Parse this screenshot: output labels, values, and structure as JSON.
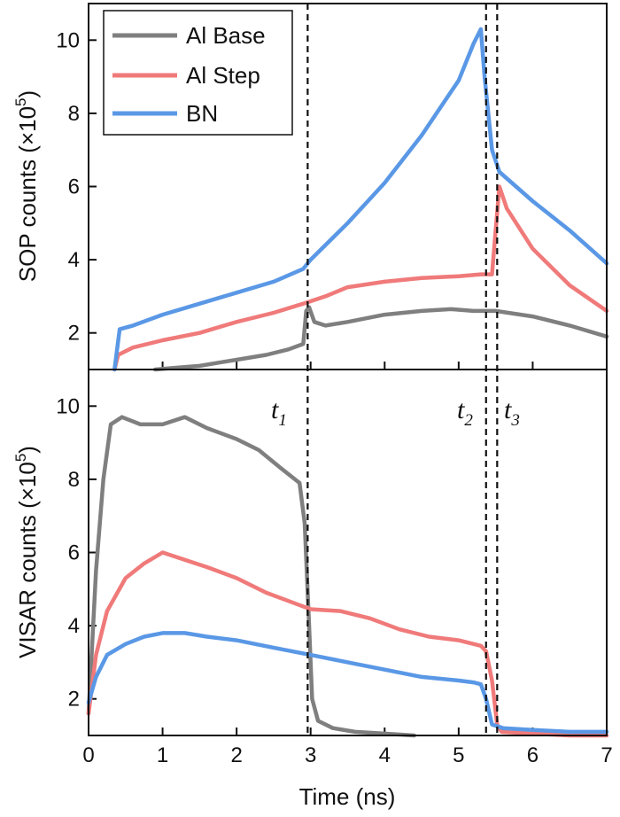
{
  "chart_data": {
    "type": "line",
    "colors": {
      "al_base": "#7f7f7f",
      "al_step": "#f07a7a",
      "bn": "#5a98e6"
    },
    "xlabel": "Time (ns)",
    "xlim": [
      0,
      7
    ],
    "xticks": [
      0,
      1,
      2,
      3,
      4,
      5,
      6,
      7
    ],
    "time_markers": [
      {
        "name": "t",
        "sub": "1",
        "x": 2.96
      },
      {
        "name": "t",
        "sub": "2",
        "x": 5.37
      },
      {
        "name": "t",
        "sub": "3",
        "x": 5.52
      }
    ],
    "legend": {
      "placement": "top-left",
      "entries": [
        {
          "label": "Al Base",
          "series": "al_base"
        },
        {
          "label": "Al Step",
          "series": "al_step"
        },
        {
          "label": "BN",
          "series": "bn"
        }
      ]
    },
    "panels": [
      {
        "id": "sop",
        "ylabel": "SOP counts (×10",
        "ylabel_exp": "5",
        "ylabel_close": ")",
        "ylim": [
          1,
          11
        ],
        "yticks": [
          2,
          4,
          6,
          8,
          10
        ],
        "series": [
          {
            "key": "al_base",
            "name": "Al Base",
            "x": [
              0.9,
              1.2,
              1.5,
              1.8,
              2.1,
              2.4,
              2.7,
              2.9,
              2.94,
              2.98,
              3.05,
              3.2,
              3.5,
              4.0,
              4.5,
              4.9,
              5.2,
              5.5,
              6.0,
              6.5,
              7.0
            ],
            "y": [
              1.0,
              1.05,
              1.1,
              1.2,
              1.3,
              1.4,
              1.55,
              1.7,
              2.6,
              2.7,
              2.3,
              2.2,
              2.3,
              2.5,
              2.6,
              2.65,
              2.6,
              2.6,
              2.45,
              2.2,
              1.9
            ]
          },
          {
            "key": "al_step",
            "name": "Al Step",
            "x": [
              0.35,
              0.4,
              0.6,
              1.0,
              1.5,
              2.0,
              2.5,
              2.9,
              3.2,
              3.5,
              4.0,
              4.5,
              5.0,
              5.3,
              5.45,
              5.5,
              5.55,
              5.65,
              6.0,
              6.5,
              7.0
            ],
            "y": [
              1.0,
              1.4,
              1.6,
              1.8,
              2.0,
              2.3,
              2.55,
              2.8,
              3.0,
              3.25,
              3.4,
              3.5,
              3.55,
              3.6,
              3.6,
              4.8,
              6.0,
              5.4,
              4.3,
              3.3,
              2.6
            ]
          },
          {
            "key": "bn",
            "name": "BN",
            "x": [
              0.35,
              0.42,
              0.6,
              1.0,
              1.5,
              2.0,
              2.5,
              2.9,
              3.0,
              3.5,
              4.0,
              4.5,
              5.0,
              5.2,
              5.3,
              5.35,
              5.45,
              5.55,
              6.0,
              6.5,
              7.0
            ],
            "y": [
              1.0,
              2.1,
              2.2,
              2.5,
              2.8,
              3.1,
              3.4,
              3.75,
              4.0,
              5.0,
              6.1,
              7.4,
              8.9,
              9.9,
              10.3,
              9.0,
              7.0,
              6.4,
              5.6,
              4.8,
              3.9
            ]
          }
        ]
      },
      {
        "id": "visar",
        "ylabel": "VISAR counts (×10",
        "ylabel_exp": "5",
        "ylabel_close": ")",
        "ylim": [
          1,
          11
        ],
        "yticks": [
          2,
          4,
          6,
          8,
          10
        ],
        "series": [
          {
            "key": "al_base",
            "name": "Al Base",
            "x": [
              0.0,
              0.1,
              0.2,
              0.3,
              0.45,
              0.7,
              1.0,
              1.3,
              1.6,
              2.0,
              2.3,
              2.6,
              2.85,
              2.92,
              2.98,
              3.02,
              3.1,
              3.3,
              3.6,
              4.0,
              4.4
            ],
            "y": [
              1.6,
              5.5,
              8.0,
              9.5,
              9.7,
              9.5,
              9.5,
              9.7,
              9.4,
              9.1,
              8.8,
              8.3,
              7.9,
              6.8,
              4.0,
              2.0,
              1.4,
              1.2,
              1.1,
              1.05,
              1.0
            ]
          },
          {
            "key": "al_step",
            "name": "Al Step",
            "x": [
              0.0,
              0.1,
              0.25,
              0.5,
              0.75,
              1.0,
              1.3,
              1.6,
              2.0,
              2.4,
              2.8,
              3.0,
              3.4,
              3.8,
              4.2,
              4.6,
              5.0,
              5.3,
              5.37,
              5.45,
              5.52,
              5.58,
              6.0,
              6.5,
              7.0
            ],
            "y": [
              1.6,
              3.2,
              4.4,
              5.3,
              5.7,
              6.0,
              5.8,
              5.6,
              5.3,
              4.9,
              4.6,
              4.45,
              4.4,
              4.2,
              3.9,
              3.7,
              3.6,
              3.45,
              3.3,
              2.5,
              1.3,
              1.1,
              1.05,
              1.0,
              1.0
            ]
          },
          {
            "key": "bn",
            "name": "BN",
            "x": [
              0.0,
              0.1,
              0.25,
              0.5,
              0.75,
              1.0,
              1.3,
              1.6,
              2.0,
              2.5,
              3.0,
              3.5,
              4.0,
              4.5,
              5.0,
              5.2,
              5.3,
              5.37,
              5.45,
              5.6,
              6.0,
              6.5,
              7.0
            ],
            "y": [
              1.9,
              2.6,
              3.2,
              3.5,
              3.7,
              3.8,
              3.8,
              3.7,
              3.6,
              3.4,
              3.2,
              3.0,
              2.8,
              2.6,
              2.5,
              2.45,
              2.4,
              2.0,
              1.3,
              1.2,
              1.15,
              1.1,
              1.1
            ]
          }
        ]
      }
    ]
  }
}
